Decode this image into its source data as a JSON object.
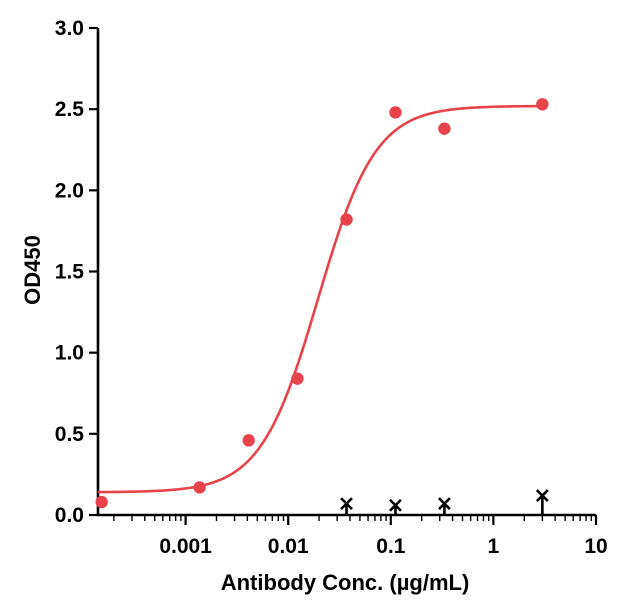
{
  "chart_data": {
    "type": "scatter",
    "xlabel": "Antibody Conc. (µg/mL)",
    "ylabel": "OD450",
    "x_scale": "log",
    "xlim": [
      0.00014,
      10
    ],
    "ylim": [
      0,
      3.0
    ],
    "x_ticks": [
      {
        "value": 0.001,
        "label": "0.001"
      },
      {
        "value": 0.01,
        "label": "0.01"
      },
      {
        "value": 0.1,
        "label": "0.1"
      },
      {
        "value": 1,
        "label": "1"
      },
      {
        "value": 10,
        "label": "10"
      }
    ],
    "y_ticks": [
      {
        "value": 0,
        "label": "0.0"
      },
      {
        "value": 0.5,
        "label": "0.5"
      },
      {
        "value": 1.0,
        "label": "1.0"
      },
      {
        "value": 1.5,
        "label": "1.5"
      },
      {
        "value": 2.0,
        "label": "2.0"
      },
      {
        "value": 2.5,
        "label": "2.5"
      },
      {
        "value": 3.0,
        "label": "3.0"
      }
    ],
    "grid": false,
    "legend": "none",
    "series": [
      {
        "marker": "circle",
        "color": "#e8434a",
        "points": [
          {
            "x": 0.000152,
            "y": 0.08
          },
          {
            "x": 0.00137,
            "y": 0.17
          },
          {
            "x": 0.00412,
            "y": 0.46
          },
          {
            "x": 0.0123,
            "y": 0.84
          },
          {
            "x": 0.037,
            "y": 1.82
          },
          {
            "x": 0.111,
            "y": 2.48
          },
          {
            "x": 0.333,
            "y": 2.38
          },
          {
            "x": 3.0,
            "y": 2.53
          }
        ],
        "fit": {
          "model": "4PL",
          "bottom": 0.14,
          "top": 2.52,
          "ec50": 0.0195,
          "hill": 1.55
        }
      },
      {
        "marker": "cross",
        "color": "#000000",
        "points": [
          {
            "x": 0.037,
            "y": 0.07
          },
          {
            "x": 0.111,
            "y": 0.06
          },
          {
            "x": 0.333,
            "y": 0.07
          },
          {
            "x": 3.0,
            "y": 0.12
          }
        ]
      }
    ]
  }
}
